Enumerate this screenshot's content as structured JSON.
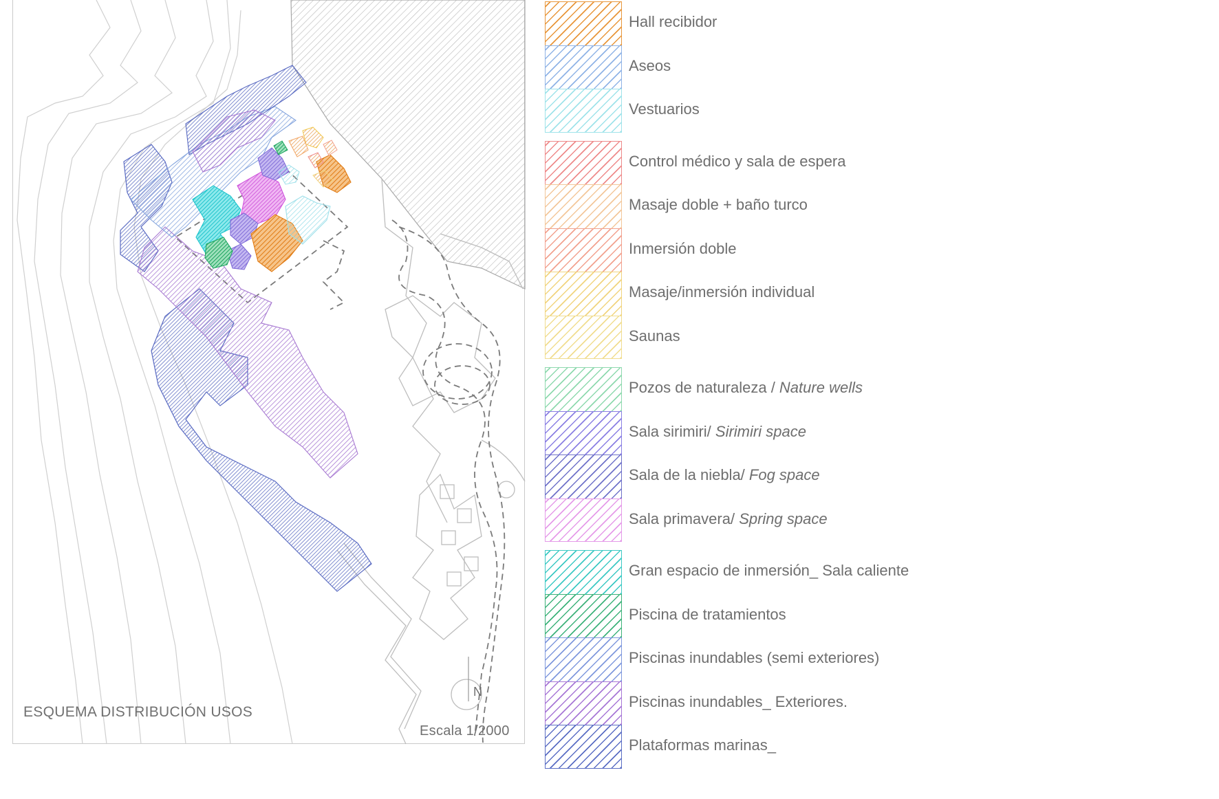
{
  "title": "ESQUEMA DISTRIBUCIÓN USOS",
  "scale_text": "Escala 1/2000",
  "north_label": "N",
  "legend": {
    "groups": [
      {
        "items": [
          {
            "label": "Hall recibidor",
            "color": "#e8963a"
          },
          {
            "label": "Aseos",
            "color": "#8fb3e6"
          },
          {
            "label": "Vestuarios",
            "color": "#9fe3ea"
          }
        ]
      },
      {
        "items": [
          {
            "label": "Control médico y sala de espera",
            "color": "#ee8a8a"
          },
          {
            "label": "Masaje doble + baño turco",
            "color": "#f3c79a"
          },
          {
            "label": "Inmersión doble",
            "color": "#f2a18e"
          },
          {
            "label": "Masaje/inmersión individual",
            "color": "#f1d47e"
          },
          {
            "label": "Saunas",
            "color": "#f1dd8f"
          }
        ]
      },
      {
        "items": [
          {
            "label": "Pozos de naturaleza / ",
            "label_en": "Nature wells",
            "color": "#8ed9ae"
          },
          {
            "label": "Sala sirimiri/ ",
            "label_en": "Sirimiri space",
            "color": "#8a7fe3"
          },
          {
            "label": "Sala de la niebla/ ",
            "label_en": "Fog space",
            "color": "#6f72c9"
          },
          {
            "label": "Sala primavera/ ",
            "label_en": "Spring space",
            "color": "#e59be9"
          }
        ]
      },
      {
        "items": [
          {
            "label": "Gran espacio de inmersión_ Sala caliente",
            "color": "#3cc9c4"
          },
          {
            "label": "Piscina de tratamientos",
            "color": "#3db27a"
          },
          {
            "label": "Piscinas inundables (semi exteriores)",
            "color": "#7f98dd"
          },
          {
            "label": "Piscinas inundables_ Exteriores.",
            "color": "#a777d6"
          },
          {
            "label": "Plataformas marinas_",
            "color": "#5b6ec4"
          }
        ]
      }
    ]
  }
}
